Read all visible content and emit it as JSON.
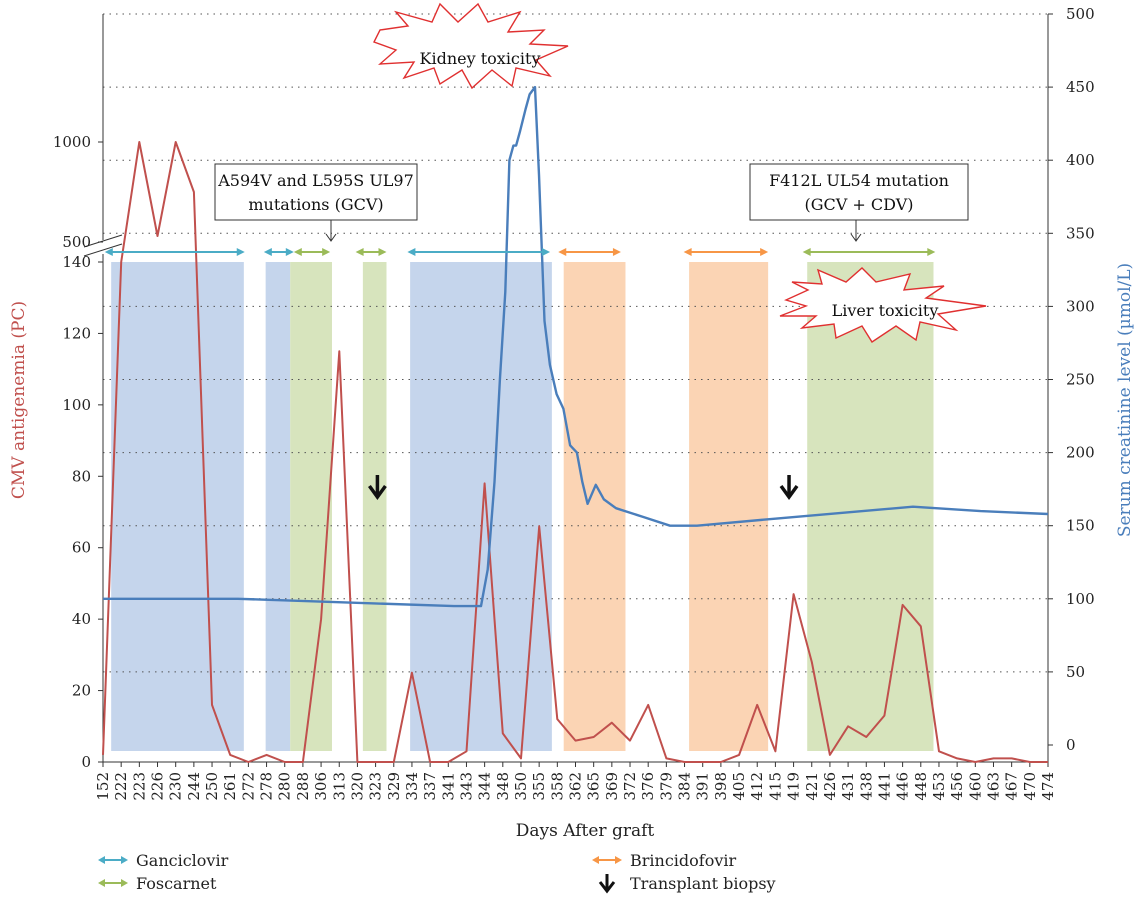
{
  "chart_data": {
    "type": "line",
    "xlabel": "Days After graft",
    "ylabel_left": "CMV antigenemia (PC)",
    "ylabel_right": "Serum creatinine level (µmol/L)",
    "colors": {
      "cmv": "#c0504d",
      "creatinine": "#4a7ebb",
      "ganciclovir": "#4bacc6",
      "foscarnet": "#9bbb59",
      "brincidofovir": "#f79646",
      "ganciclovir_band": "#c5d5ec",
      "foscarnet_band": "#d7e4bd",
      "brincidofovir_band": "#fbd4b4"
    },
    "left_axis_lower": {
      "range": [
        0,
        140
      ],
      "ticks": [
        "0",
        "20",
        "40",
        "60",
        "80",
        "100",
        "120",
        "140"
      ]
    },
    "left_axis_upper": {
      "ticks": [
        "500",
        "1000"
      ]
    },
    "right_axis": {
      "range": [
        0,
        500
      ],
      "ticks": [
        "0",
        "50",
        "100",
        "150",
        "200",
        "250",
        "300",
        "350",
        "400",
        "450",
        "500"
      ]
    },
    "categories": [
      "152",
      "222",
      "223",
      "226",
      "230",
      "244",
      "250",
      "261",
      "272",
      "278",
      "280",
      "288",
      "306",
      "313",
      "320",
      "323",
      "329",
      "334",
      "337",
      "341",
      "343",
      "344",
      "348",
      "350",
      "355",
      "358",
      "362",
      "365",
      "369",
      "372",
      "376",
      "379",
      "384",
      "391",
      "398",
      "405",
      "412",
      "415",
      "419",
      "421",
      "426",
      "431",
      "438",
      "441",
      "446",
      "448",
      "453",
      "456",
      "460",
      "463",
      "467",
      "470",
      "474"
    ],
    "series": [
      {
        "name": "CMV antigenemia",
        "axis": "left",
        "values": [
          2,
          140,
          500,
          530,
          1000,
          750,
          16,
          2,
          0,
          2,
          0,
          0,
          40,
          115,
          0,
          0,
          0,
          25,
          0,
          0,
          3,
          78,
          8,
          1,
          66,
          12,
          6,
          7,
          11,
          6,
          16,
          1,
          0,
          0,
          0,
          2,
          16,
          3,
          47,
          28,
          2,
          10,
          7,
          13,
          44,
          38,
          3,
          1,
          0,
          1,
          1,
          0,
          0
        ]
      },
      {
        "name": "Serum creatinine",
        "axis": "right",
        "points": [
          [
            0,
            100
          ],
          [
            8,
            100
          ],
          [
            10,
            100
          ],
          [
            26,
            95
          ],
          [
            28,
            95
          ],
          [
            28.5,
            120
          ],
          [
            29,
            180
          ],
          [
            29.4,
            250
          ],
          [
            29.8,
            310
          ],
          [
            30.1,
            400
          ],
          [
            30.4,
            410
          ],
          [
            30.6,
            410
          ],
          [
            30.9,
            420
          ],
          [
            31.3,
            435
          ],
          [
            31.6,
            445
          ],
          [
            32,
            450
          ],
          [
            32.3,
            390
          ],
          [
            32.7,
            290
          ],
          [
            33.1,
            260
          ],
          [
            33.6,
            240
          ],
          [
            34.1,
            230
          ],
          [
            34.6,
            205
          ],
          [
            35.1,
            200
          ],
          [
            35.5,
            180
          ],
          [
            35.9,
            165
          ],
          [
            36.5,
            178
          ],
          [
            37.1,
            168
          ],
          [
            38,
            162
          ],
          [
            40,
            156
          ],
          [
            42,
            150
          ],
          [
            44,
            150
          ],
          [
            50,
            155
          ],
          [
            60,
            163
          ],
          [
            65,
            160
          ],
          [
            70,
            158
          ]
        ]
      }
    ],
    "bands": [
      {
        "drug": "Ganciclovir",
        "from": 0.45,
        "to": 7.75
      },
      {
        "drug": "Ganciclovir",
        "from": 8.95,
        "to": 10.3
      },
      {
        "drug": "Foscarnet",
        "from": 10.3,
        "to": 12.6
      },
      {
        "drug": "Foscarnet",
        "from": 14.3,
        "to": 15.6
      },
      {
        "drug": "Ganciclovir",
        "from": 16.9,
        "to": 24.7
      },
      {
        "drug": "Brincidofovir",
        "from": 25.35,
        "to": 28.75
      },
      {
        "drug": "Brincidofovir",
        "from": 32.25,
        "to": 36.6
      },
      {
        "drug": "Foscarnet",
        "from": 38.75,
        "to": 45.7
      }
    ],
    "treatment_arrows": [
      {
        "drug": "Ganciclovir",
        "from": 0.1,
        "to": 7.8
      },
      {
        "drug": "Ganciclovir",
        "from": 8.85,
        "to": 10.5
      },
      {
        "drug": "Foscarnet",
        "from": 10.5,
        "to": 12.5
      },
      {
        "drug": "Foscarnet",
        "from": 13.9,
        "to": 15.6
      },
      {
        "drug": "Ganciclovir",
        "from": 16.75,
        "to": 24.6
      },
      {
        "drug": "Brincidofovir",
        "from": 25.05,
        "to": 28.5
      },
      {
        "drug": "Brincidofovir",
        "from": 31.95,
        "to": 36.6
      },
      {
        "drug": "Foscarnet",
        "from": 38.5,
        "to": 45.8
      }
    ],
    "biopsies": [
      15.1,
      37.75
    ],
    "annotations": {
      "mutation1": [
        "A594V and L595S UL97",
        "mutations (GCV)"
      ],
      "mutation2": [
        "F412L UL54 mutation",
        "(GCV + CDV)"
      ],
      "kidney": "Kidney toxicity",
      "liver": "Liver toxicity"
    },
    "legend": {
      "ganciclovir": "Ganciclovir",
      "foscarnet": "Foscarnet",
      "brincidofovir": "Brincidofovir",
      "biopsy": "Transplant biopsy"
    }
  }
}
